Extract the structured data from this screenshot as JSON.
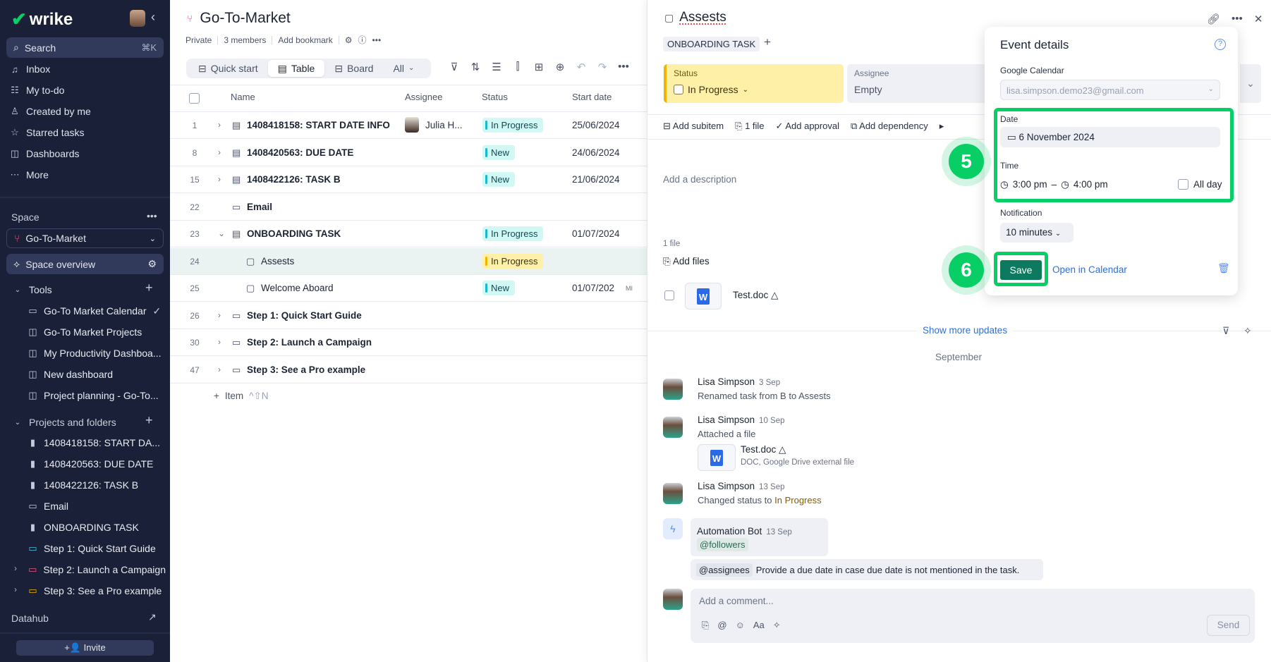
{
  "colors": {
    "brand": "#08cf65",
    "sidebar": "#1a2038",
    "save": "#0d7a5f",
    "link": "#2f6fd6",
    "in_progress_bg": "#d2f8f6",
    "new_bg": "#d2f8f6",
    "in_progress_yellow": "#fff0a8"
  },
  "sidebar": {
    "logo": "wrike",
    "search": {
      "label": "Search",
      "shortcut": "⌘K"
    },
    "nav": [
      {
        "label": "Inbox",
        "icon": "bell-icon"
      },
      {
        "label": "My to-do",
        "icon": "todo-icon"
      },
      {
        "label": "Created by me",
        "icon": "user-plus-icon"
      },
      {
        "label": "Starred tasks",
        "icon": "star-icon"
      },
      {
        "label": "Dashboards",
        "icon": "dashboard-icon"
      },
      {
        "label": "More",
        "icon": "more-icon"
      }
    ],
    "space_label": "Space",
    "space_selected": "Go-To-Market",
    "space_overview": "Space overview",
    "tools_label": "Tools",
    "tools": [
      {
        "label": "Go-To Market Calendar",
        "icon": "calendar-icon"
      },
      {
        "label": "Go-To Market Projects",
        "icon": "dashboard-icon"
      },
      {
        "label": "My Productivity Dashboa...",
        "icon": "dashboard-icon"
      },
      {
        "label": "New dashboard",
        "icon": "dashboard-icon"
      },
      {
        "label": "Project planning - Go-To...",
        "icon": "dashboard-icon"
      }
    ],
    "projects_label": "Projects and folders",
    "projects": [
      {
        "label": "1408418158: START DA...",
        "icon": "project-icon"
      },
      {
        "label": "1408420563: DUE DATE",
        "icon": "project-icon"
      },
      {
        "label": "1408422126: TASK B",
        "icon": "project-icon"
      },
      {
        "label": "Email",
        "icon": "folder-icon"
      },
      {
        "label": "ONBOARDING TASK",
        "icon": "project-icon"
      },
      {
        "label": "Step 1: Quick Start Guide",
        "icon": "folder-icon",
        "color": "#4fc3e0"
      },
      {
        "label": "Step 2: Launch a Campaign",
        "icon": "folder-icon",
        "color": "#e85a8a",
        "expandable": true
      },
      {
        "label": "Step 3: See a Pro example",
        "icon": "folder-icon",
        "color": "#f0b400",
        "expandable": true
      }
    ],
    "datahub": "Datahub",
    "invite": "Invite"
  },
  "main": {
    "title": "Go-To-Market",
    "meta": [
      "Private",
      "3 members",
      "Add bookmark"
    ],
    "tabs": [
      {
        "label": "Quick start"
      },
      {
        "label": "Table",
        "active": true
      },
      {
        "label": "Board"
      },
      {
        "label": "All"
      }
    ],
    "columns": [
      "Name",
      "Assignee",
      "Status",
      "Start date"
    ],
    "rows": [
      {
        "num": "1",
        "chev": "›",
        "icon": "task",
        "name": "1408418158: START DATE INFO",
        "assignee": "Julia H...",
        "status": "In Progress",
        "status_color": "cyan",
        "date": "25/06/2024"
      },
      {
        "num": "8",
        "chev": "›",
        "icon": "task",
        "name": "1408420563: DUE DATE",
        "status": "New",
        "status_color": "cyan",
        "date": "24/06/2024"
      },
      {
        "num": "15",
        "chev": "›",
        "icon": "task",
        "name": "1408422126: TASK B",
        "status": "New",
        "status_color": "cyan",
        "date": "21/06/2024"
      },
      {
        "num": "22",
        "icon": "folder",
        "name": "Email"
      },
      {
        "num": "23",
        "chev": "⌄",
        "icon": "task",
        "name": "ONBOARDING TASK",
        "status": "In Progress",
        "status_color": "cyan",
        "date": "01/07/2024"
      },
      {
        "num": "24",
        "icon": "subtask",
        "name": "Assests",
        "status": "In Progress",
        "status_color": "yellow",
        "selected": true,
        "indent": true
      },
      {
        "num": "25",
        "icon": "subtask",
        "name": "Welcome Aboard",
        "status": "New",
        "status_color": "cyan",
        "date": "01/07/202",
        "date_suffix": "MI",
        "indent": true
      },
      {
        "num": "26",
        "chev": "›",
        "icon": "folder",
        "name": "Step 1: Quick Start Guide"
      },
      {
        "num": "30",
        "chev": "›",
        "icon": "folder",
        "name": "Step 2: Launch a Campaign"
      },
      {
        "num": "47",
        "chev": "›",
        "icon": "folder",
        "name": "Step 3: See a Pro example"
      }
    ],
    "add_item": "Item",
    "add_item_shortcut": "^⇧N"
  },
  "detail": {
    "title": "Assests",
    "tag": "ONBOARDING TASK",
    "status_label": "Status",
    "status_value": "In Progress",
    "assignee_label": "Assignee",
    "assignee_value": "Empty",
    "actions": [
      "Add subitem",
      "1 file",
      "Add approval",
      "Add dependency"
    ],
    "description_placeholder": "Add a description",
    "files_count": "1 file",
    "add_files": "Add files",
    "file_name": "Test.doc",
    "show_more": "Show more updates",
    "month": "September",
    "activity": [
      {
        "name": "Lisa Simpson",
        "date": "3 Sep",
        "desc": "Renamed task from B to Assests"
      },
      {
        "name": "Lisa Simpson",
        "date": "10 Sep",
        "desc": "Attached a file",
        "file": "Test.doc",
        "file_meta": "DOC, Google Drive external file"
      },
      {
        "name": "Lisa Simpson",
        "date": "13 Sep",
        "desc": "Changed status to ",
        "highlight": "In Progress"
      }
    ],
    "bot": {
      "name": "Automation Bot",
      "date": "13 Sep",
      "mention": "@followers",
      "mention2": "@assignees",
      "message": "Provide a due date in case due date is not mentioned in the task."
    },
    "comment_placeholder": "Add a comment...",
    "send": "Send"
  },
  "event": {
    "title": "Event details",
    "calendar_label": "Google Calendar",
    "calendar_value": "lisa.simpson.demo23@gmail.com",
    "date_label": "Date",
    "date_value": "6 November 2024",
    "time_label": "Time",
    "time_start": "3:00 pm",
    "time_sep": "–",
    "time_end": "4:00 pm",
    "all_day": "All day",
    "notification_label": "Notification",
    "notification_value": "10 minutes",
    "save": "Save",
    "open_calendar": "Open in Calendar"
  },
  "steps": [
    "5",
    "6"
  ]
}
